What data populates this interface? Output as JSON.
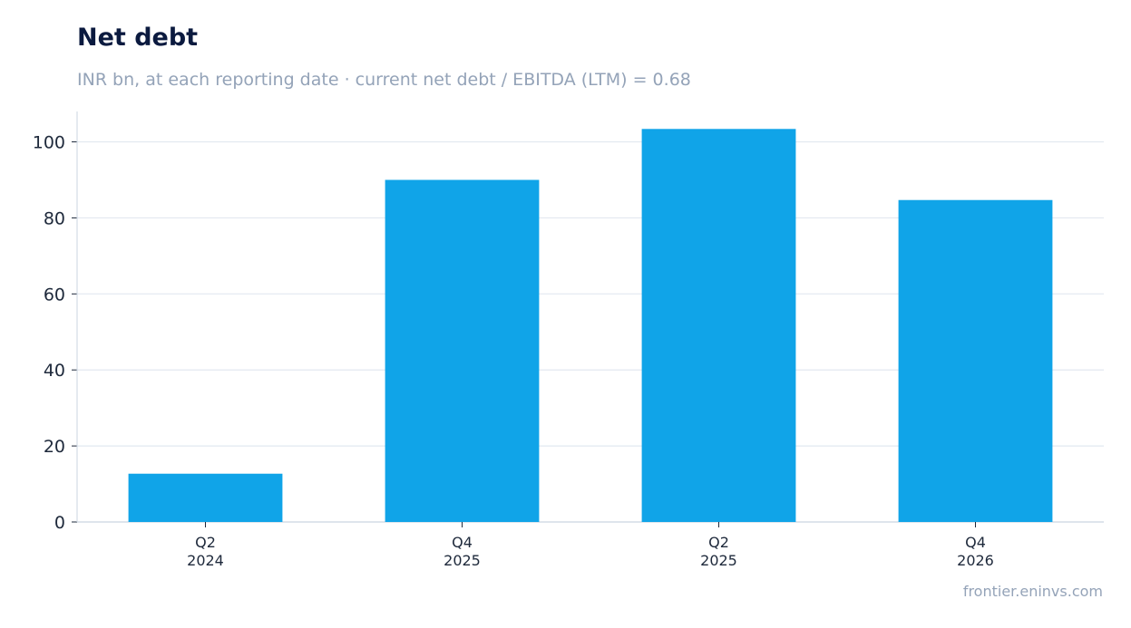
{
  "title": "Net debt",
  "subtitle": "INR bn, at each reporting date · current net debt / EBITDA (LTM) = 0.68",
  "watermark": "frontier.eninvs.com",
  "colors": {
    "bar": "#10a4e8",
    "grid": "#e2e8f0",
    "axis": "#cbd5e1",
    "tick_text": "#1e293b",
    "title": "#0b1a3f",
    "subtitle": "#94a3b8"
  },
  "chart_data": {
    "type": "bar",
    "title": "Net debt",
    "categories": [
      [
        "Q2",
        "2024"
      ],
      [
        "Q4",
        "2025"
      ],
      [
        "Q2",
        "2025"
      ],
      [
        "Q4",
        "2026"
      ]
    ],
    "values": [
      12.7,
      90.0,
      103.4,
      84.7
    ],
    "ylim": [
      0,
      108
    ],
    "yticks": [
      0,
      20,
      40,
      60,
      80,
      100
    ],
    "xlabel": "",
    "ylabel": "",
    "grid": true,
    "legend": false
  }
}
